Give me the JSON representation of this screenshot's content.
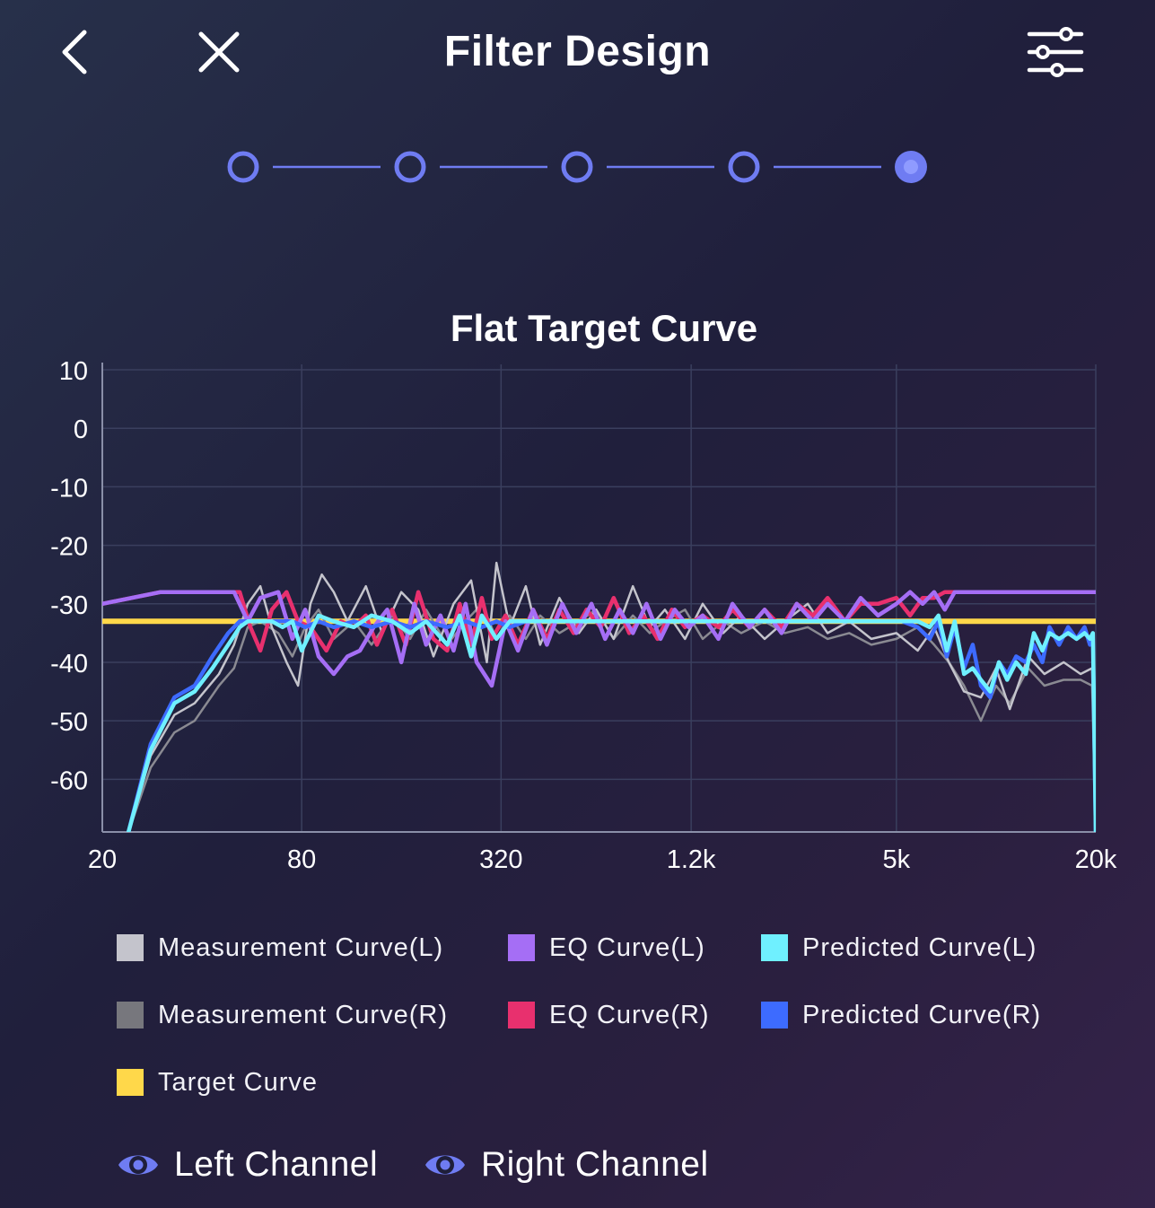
{
  "header": {
    "title": "Filter Design"
  },
  "stepper": {
    "steps": 5,
    "active_index": 4,
    "color": "#6f7cf2"
  },
  "chart_data": {
    "type": "line",
    "title": "Flat Target Curve",
    "xlabel": "",
    "ylabel": "",
    "x_scale": "log",
    "xlim": [
      20,
      20000
    ],
    "ylim": [
      -69,
      10
    ],
    "x_ticks": [
      20,
      80,
      320,
      1200,
      5000,
      20000
    ],
    "x_tick_labels": [
      "20",
      "80",
      "320",
      "1.2k",
      "5k",
      "20k"
    ],
    "y_ticks": [
      10,
      0,
      -10,
      -20,
      -30,
      -40,
      -50,
      -60
    ],
    "y_tick_labels": [
      "10",
      "0",
      "-10",
      "-20",
      "-30",
      "-40",
      "-50",
      "-60"
    ],
    "grid": true,
    "legend_position": "bottom",
    "series": [
      {
        "name": "Target Curve",
        "color": "#ffd84a",
        "width": 6,
        "x": [
          20,
          20000
        ],
        "y": [
          -33,
          -33
        ]
      },
      {
        "name": "Measurement Curve(R)",
        "color": "#8a8a92",
        "width": 2.5,
        "x": [
          24,
          28,
          33,
          38,
          45,
          50,
          55,
          60,
          68,
          75,
          82,
          90,
          100,
          115,
          130,
          150,
          170,
          190,
          220,
          250,
          280,
          310,
          340,
          380,
          420,
          480,
          550,
          620,
          700,
          800,
          900,
          1000,
          1150,
          1300,
          1500,
          1700,
          2000,
          2300,
          2700,
          3100,
          3600,
          4200,
          5000,
          5800,
          6500,
          7200,
          8000,
          9000,
          10000,
          11000,
          12500,
          14000,
          16000,
          18000,
          19500,
          20000
        ],
        "y": [
          -69,
          -58,
          -52,
          -50,
          -44,
          -41,
          -34,
          -33,
          -35,
          -39,
          -34,
          -31,
          -36,
          -33,
          -37,
          -32,
          -36,
          -31,
          -37,
          -33,
          -30,
          -36,
          -32,
          -36,
          -32,
          -35,
          -33,
          -31,
          -36,
          -32,
          -35,
          -33,
          -31,
          -36,
          -33,
          -35,
          -33,
          -35,
          -34,
          -36,
          -35,
          -37,
          -36,
          -34,
          -37,
          -40,
          -44,
          -50,
          -44,
          -47,
          -41,
          -44,
          -43,
          -43,
          -44,
          -69
        ]
      },
      {
        "name": "Measurement Curve(L)",
        "color": "#c4c4cc",
        "width": 2.5,
        "x": [
          24,
          28,
          33,
          38,
          45,
          50,
          55,
          60,
          65,
          72,
          78,
          85,
          92,
          100,
          110,
          125,
          140,
          160,
          180,
          200,
          230,
          260,
          290,
          310,
          340,
          380,
          420,
          480,
          550,
          620,
          700,
          800,
          900,
          1000,
          1150,
          1300,
          1500,
          1700,
          2000,
          2300,
          2700,
          3100,
          3600,
          4200,
          5000,
          5800,
          6500,
          7200,
          8000,
          9000,
          10000,
          11000,
          12500,
          14000,
          16000,
          18000,
          19500,
          20000
        ],
        "y": [
          -69,
          -56,
          -49,
          -47,
          -42,
          -37,
          -30,
          -27,
          -34,
          -40,
          -44,
          -30,
          -25,
          -28,
          -33,
          -27,
          -35,
          -28,
          -31,
          -39,
          -30,
          -26,
          -40,
          -23,
          -34,
          -27,
          -37,
          -29,
          -35,
          -31,
          -36,
          -27,
          -34,
          -31,
          -36,
          -30,
          -35,
          -32,
          -36,
          -33,
          -30,
          -35,
          -33,
          -36,
          -35,
          -38,
          -34,
          -40,
          -45,
          -46,
          -41,
          -48,
          -39,
          -42,
          -40,
          -42,
          -41,
          -69
        ]
      },
      {
        "name": "EQ Curve(R)",
        "color": "#e8306e",
        "width": 4.5,
        "x": [
          20,
          30,
          45,
          52,
          56,
          60,
          65,
          72,
          78,
          85,
          95,
          105,
          115,
          125,
          135,
          150,
          165,
          180,
          200,
          220,
          240,
          260,
          280,
          300,
          330,
          360,
          400,
          440,
          480,
          530,
          580,
          640,
          700,
          780,
          860,
          950,
          1050,
          1150,
          1300,
          1450,
          1600,
          1800,
          2000,
          2250,
          2500,
          2800,
          3100,
          3500,
          3900,
          4400,
          5000,
          5500,
          6000,
          6500,
          7000,
          20000
        ],
        "y": [
          -30,
          -28,
          -28,
          -28,
          -34,
          -38,
          -31,
          -28,
          -33,
          -34,
          -38,
          -33,
          -34,
          -32,
          -37,
          -31,
          -37,
          -28,
          -36,
          -38,
          -30,
          -37,
          -29,
          -36,
          -32,
          -37,
          -31,
          -36,
          -31,
          -35,
          -31,
          -34,
          -29,
          -35,
          -32,
          -36,
          -31,
          -34,
          -32,
          -34,
          -31,
          -34,
          -31,
          -34,
          -30,
          -32,
          -29,
          -33,
          -30,
          -30,
          -29,
          -32,
          -29,
          -29,
          -28,
          -28
        ]
      },
      {
        "name": "EQ Curve(L)",
        "color": "#a56ef5",
        "width": 4.5,
        "x": [
          20,
          30,
          45,
          50,
          55,
          60,
          68,
          75,
          82,
          90,
          100,
          110,
          120,
          132,
          145,
          160,
          175,
          190,
          210,
          230,
          250,
          270,
          300,
          330,
          360,
          400,
          440,
          490,
          540,
          600,
          660,
          730,
          800,
          880,
          970,
          1070,
          1180,
          1300,
          1450,
          1600,
          1800,
          2000,
          2250,
          2500,
          2800,
          3100,
          3500,
          3900,
          4400,
          5000,
          5500,
          6000,
          6500,
          7000,
          7500,
          20000
        ],
        "y": [
          -30,
          -28,
          -28,
          -28,
          -33,
          -29,
          -28,
          -36,
          -31,
          -39,
          -42,
          -39,
          -38,
          -34,
          -31,
          -40,
          -30,
          -37,
          -32,
          -38,
          -30,
          -40,
          -44,
          -33,
          -38,
          -31,
          -37,
          -30,
          -35,
          -30,
          -36,
          -31,
          -35,
          -30,
          -36,
          -31,
          -34,
          -32,
          -36,
          -30,
          -34,
          -31,
          -35,
          -30,
          -33,
          -30,
          -33,
          -29,
          -32,
          -30,
          -28,
          -30,
          -28,
          -31,
          -28,
          -28
        ]
      },
      {
        "name": "Predicted Curve(R)",
        "color": "#3d6bff",
        "width": 4.5,
        "x": [
          24,
          28,
          33,
          38,
          43,
          48,
          52,
          55,
          60,
          65,
          75,
          82,
          90,
          100,
          115,
          130,
          150,
          170,
          190,
          220,
          250,
          280,
          310,
          340,
          380,
          420,
          500,
          600,
          700,
          800,
          900,
          1000,
          1200,
          1400,
          1700,
          2000,
          2400,
          2800,
          3300,
          4000,
          4600,
          5200,
          5800,
          6300,
          6700,
          7100,
          7500,
          8000,
          8500,
          9000,
          9600,
          10200,
          10800,
          11500,
          12300,
          13000,
          13800,
          14500,
          15500,
          16500,
          17500,
          18500,
          19200,
          19600,
          20000
        ],
        "y": [
          -69,
          -54,
          -46,
          -44,
          -39,
          -35,
          -33,
          -33,
          -33,
          -33,
          -33,
          -34,
          -33,
          -34,
          -33,
          -34,
          -33,
          -34,
          -33,
          -34,
          -33,
          -34,
          -33,
          -34,
          -33,
          -33,
          -33,
          -33,
          -33,
          -33,
          -33,
          -33,
          -33,
          -33,
          -33,
          -33,
          -33,
          -33,
          -33,
          -33,
          -33,
          -33,
          -34,
          -36,
          -33,
          -39,
          -34,
          -41,
          -37,
          -44,
          -46,
          -40,
          -42,
          -39,
          -40,
          -37,
          -40,
          -34,
          -37,
          -34,
          -36,
          -34,
          -37,
          -36,
          -69
        ]
      },
      {
        "name": "Predicted Curve(L)",
        "color": "#6ff0ff",
        "width": 4.5,
        "x": [
          24,
          28,
          33,
          38,
          43,
          48,
          52,
          55,
          60,
          65,
          70,
          75,
          80,
          90,
          100,
          115,
          130,
          150,
          170,
          190,
          220,
          240,
          260,
          280,
          310,
          340,
          380,
          420,
          500,
          600,
          700,
          800,
          900,
          1000,
          1200,
          1400,
          1700,
          2000,
          2400,
          2800,
          3300,
          4000,
          4600,
          5200,
          5800,
          6300,
          6700,
          7100,
          7500,
          8000,
          8500,
          9000,
          9600,
          10200,
          10800,
          11500,
          12300,
          13000,
          13800,
          14500,
          15500,
          16500,
          17500,
          18500,
          19200,
          19600,
          20000
        ],
        "y": [
          -69,
          -55,
          -47,
          -45,
          -41,
          -37,
          -34,
          -33,
          -33,
          -33,
          -34,
          -33,
          -38,
          -32,
          -33,
          -34,
          -32,
          -33,
          -35,
          -33,
          -37,
          -32,
          -39,
          -32,
          -36,
          -33,
          -33,
          -33,
          -33,
          -33,
          -33,
          -33,
          -33,
          -33,
          -33,
          -33,
          -33,
          -33,
          -33,
          -33,
          -33,
          -33,
          -33,
          -33,
          -33,
          -34,
          -32,
          -38,
          -33,
          -42,
          -41,
          -43,
          -45,
          -40,
          -43,
          -40,
          -42,
          -35,
          -38,
          -35,
          -36,
          -35,
          -36,
          -35,
          -36,
          -35,
          -69
        ]
      }
    ]
  },
  "legend": [
    {
      "label": "Measurement Curve(L)",
      "color": "#c4c4cc"
    },
    {
      "label": "EQ Curve(L)",
      "color": "#a56ef5"
    },
    {
      "label": "Predicted Curve(L)",
      "color": "#6ff0ff"
    },
    {
      "label": "Measurement Curve(R)",
      "color": "#77777d"
    },
    {
      "label": "EQ Curve(R)",
      "color": "#e8306e"
    },
    {
      "label": "Predicted Curve(R)",
      "color": "#3d6bff"
    },
    {
      "label": "Target Curve",
      "color": "#ffd84a"
    }
  ],
  "channels": {
    "left_label": "Left Channel",
    "right_label": "Right Channel",
    "icon": "eye-icon",
    "icon_color": "#6f7cf2"
  }
}
